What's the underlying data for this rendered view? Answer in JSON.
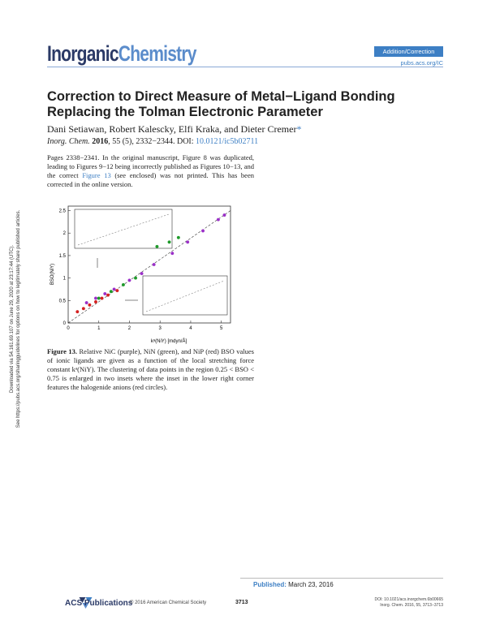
{
  "header": {
    "journal_part1": "Inorganic",
    "journal_part2": "Chemistry",
    "badge": "Addition/Correction",
    "url": "pubs.acs.org/IC"
  },
  "article": {
    "title": "Correction to Direct Measure of Metal−Ligand Bonding Replacing the Tolman Electronic Parameter",
    "authors": "Dani Setiawan, Robert Kalescky, Elfi Kraka, and Dieter Cremer",
    "author_star": "*",
    "citation_journal": "Inorg. Chem.",
    "citation_year": "2016",
    "citation_rest": ", 55 (5), 2332−2344. DOI: ",
    "citation_doi": "10.0121/ic5b02711",
    "body_pre": "Pages 2338−2341. In the original manuscript, Figure 8 was duplicated, leading to Figures 9−12 being incorrectly published as Figures 10−13, and the correct ",
    "body_link": "Figure 13",
    "body_post": " (see enclosed) was not printed. This has been corrected in the online version."
  },
  "figure": {
    "caption_label": "Figure 13.",
    "caption_text": " Relative NiC (purple), NiN (green), and NiP (red) BSO values of ionic ligands are given as a function of the local stretching force constant kᵃ(NiY). The clustering of data points in the region 0.25 < BSO < 0.75 is enlarged in two insets where the inset in the lower right corner features the halogenide anions (red circles).",
    "xlabel": "kᵃ(NiY) [mdyn/Å]",
    "ylabel": "BSO(NiY)",
    "x_ticks": [
      "0",
      "1",
      "2",
      "3",
      "4",
      "5"
    ],
    "y_ticks": [
      "0",
      "0.5",
      "1",
      "1.5",
      "2",
      "2.5"
    ]
  },
  "chart_data": {
    "type": "scatter",
    "xlabel": "kᵃ(NiY) [mdyn/Å]",
    "ylabel": "BSO(NiY)",
    "xlim": [
      0,
      5.3
    ],
    "ylim": [
      0,
      2.6
    ],
    "series": [
      {
        "name": "NiC",
        "color": "#9b30c8",
        "x": [
          0.6,
          0.9,
          1.2,
          1.5,
          2.0,
          2.4,
          2.8,
          3.4,
          3.9,
          4.4,
          4.9,
          5.1
        ],
        "y": [
          0.45,
          0.55,
          0.65,
          0.75,
          0.95,
          1.1,
          1.3,
          1.55,
          1.8,
          2.05,
          2.3,
          2.4
        ]
      },
      {
        "name": "NiN",
        "color": "#1e9a2a",
        "x": [
          1.0,
          1.4,
          1.8,
          2.2,
          2.9,
          3.3,
          3.6
        ],
        "y": [
          0.55,
          0.7,
          0.85,
          1.0,
          1.7,
          1.8,
          1.9
        ]
      },
      {
        "name": "NiP",
        "color": "#d42020",
        "x": [
          0.3,
          0.5,
          0.7,
          0.9,
          1.1,
          1.3,
          1.6
        ],
        "y": [
          0.25,
          0.32,
          0.4,
          0.47,
          0.55,
          0.62,
          0.72
        ]
      }
    ]
  },
  "footer": {
    "published_label": "Published:",
    "published_date": "March 23, 2016",
    "acs": "ACS Publications",
    "copyright": "© 2016 American Chemical Society",
    "page": "3713",
    "doi_line1": "DOI: 10.1021/acs.inorgchem.6b00665",
    "doi_line2": "Inorg. Chem. 2016, 55, 3713−3713"
  },
  "sidebar": {
    "line1": "Downloaded via 54.161.69.107 on June 29, 2020 at 23:17:44 (UTC).",
    "line2": "See https://pubs.acs.org/sharingguidelines for options on how to legitimately share published articles."
  },
  "colors": {
    "accent": "#3d7fc4",
    "navy": "#2b3a67"
  }
}
